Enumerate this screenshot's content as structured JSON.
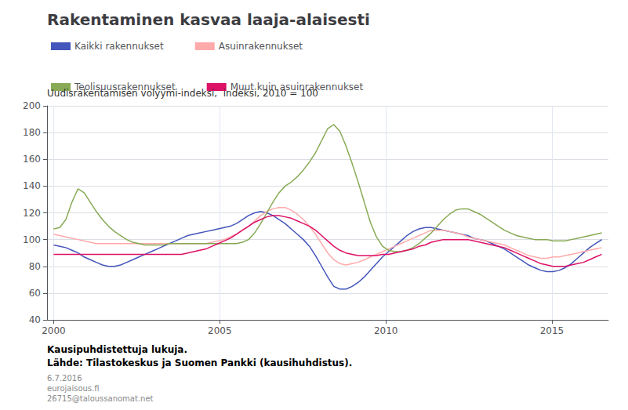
{
  "chart_data": {
    "type": "line",
    "title": "Rakentaminen kasvaa laaja-alaisesti",
    "subtitle": "Uudisrakentamisen volyymi-indeksi,  indeksi, 2010 = 100",
    "annotations": [
      "Kausipuhdistettuja lukuja.",
      "Lähde: Tilastokeskus ja Suomen Pankki (kausihuhdistus).",
      "6.7.2016",
      "eurojaisous.fi",
      "26715@taloussanomat.net"
    ],
    "x": [
      2000,
      2000.1833,
      2000.3667,
      2000.55,
      2000.7333,
      2000.9167,
      2001.1,
      2001.2833,
      2001.4667,
      2001.65,
      2001.8333,
      2002.0167,
      2002.2,
      2002.3833,
      2002.5667,
      2002.75,
      2002.9333,
      2003.1167,
      2003.3,
      2003.4833,
      2003.6667,
      2003.85,
      2004.0333,
      2004.2167,
      2004.4,
      2004.5833,
      2004.7667,
      2004.95,
      2005.1333,
      2005.3167,
      2005.5,
      2005.6833,
      2005.8667,
      2006.05,
      2006.2333,
      2006.4167,
      2006.6,
      2006.7833,
      2006.9667,
      2007.15,
      2007.3333,
      2007.5167,
      2007.7,
      2007.8833,
      2008.0667,
      2008.25,
      2008.4333,
      2008.6167,
      2008.8,
      2008.9833,
      2009.1667,
      2009.35,
      2009.5333,
      2009.7167,
      2009.9,
      2010.0833,
      2010.2667,
      2010.45,
      2010.6333,
      2010.8167,
      2011,
      2011.1833,
      2011.3667,
      2011.55,
      2011.7333,
      2011.9167,
      2012.1,
      2012.2833,
      2012.4667,
      2012.65,
      2012.8333,
      2013.0167,
      2013.2,
      2013.3833,
      2013.5667,
      2013.75,
      2013.9333,
      2014.1167,
      2014.3,
      2014.4833,
      2014.6667,
      2014.85,
      2015.0333,
      2015.2167,
      2015.4,
      2015.5833,
      2015.7667,
      2015.95,
      2016.1333,
      2016.3167,
      2016.5
    ],
    "series": [
      {
        "name": "Kaikki rakennukset",
        "color": "#4455bb",
        "values": [
          96,
          95,
          94,
          92,
          90,
          87,
          85,
          83,
          81,
          80,
          80,
          81,
          83,
          85,
          87,
          89,
          91,
          93,
          95,
          97,
          99,
          101,
          103,
          104,
          105,
          106,
          107,
          108,
          109,
          110,
          112,
          115,
          118,
          120,
          121,
          120,
          118,
          115,
          112,
          108,
          104,
          100,
          95,
          88,
          80,
          72,
          65,
          63,
          63,
          65,
          68,
          72,
          77,
          82,
          87,
          91,
          95,
          99,
          103,
          106,
          108,
          109,
          109,
          108,
          107,
          106,
          105,
          104,
          103,
          101,
          100,
          99,
          97,
          95,
          93,
          90,
          87,
          84,
          81,
          79,
          77,
          76,
          76,
          77,
          79,
          82,
          86,
          90,
          94,
          97,
          100
        ]
      },
      {
        "name": "Asuinrakennukset",
        "color": "#ffaaaa",
        "values": [
          104,
          103,
          102,
          101,
          100,
          99,
          98,
          97,
          97,
          97,
          97,
          97,
          97,
          97,
          97,
          97,
          97,
          97,
          97,
          97,
          97,
          97,
          97,
          97,
          97,
          97,
          98,
          99,
          100,
          102,
          104,
          107,
          110,
          114,
          118,
          121,
          123,
          124,
          124,
          122,
          119,
          115,
          110,
          104,
          97,
          90,
          85,
          82,
          81,
          82,
          83,
          85,
          87,
          89,
          91,
          93,
          95,
          97,
          99,
          101,
          103,
          105,
          107,
          107,
          107,
          106,
          105,
          104,
          102,
          101,
          100,
          99,
          98,
          97,
          96,
          94,
          92,
          90,
          88,
          87,
          86,
          86,
          87,
          87,
          88,
          89,
          90,
          91,
          92,
          93,
          94
        ]
      },
      {
        "name": "Teolisuusrakennukset",
        "color": "#88aa55",
        "values": [
          108,
          109,
          115,
          128,
          138,
          135,
          128,
          121,
          115,
          110,
          106,
          103,
          100,
          98,
          97,
          96,
          96,
          96,
          96,
          97,
          97,
          97,
          97,
          97,
          97,
          97,
          97,
          97,
          97,
          97,
          97,
          98,
          100,
          105,
          112,
          120,
          128,
          135,
          140,
          143,
          147,
          152,
          158,
          165,
          174,
          183,
          186,
          181,
          170,
          157,
          143,
          128,
          113,
          102,
          95,
          92,
          91,
          91,
          92,
          94,
          97,
          101,
          105,
          110,
          115,
          119,
          122,
          123,
          123,
          121,
          119,
          116,
          113,
          110,
          107,
          105,
          103,
          102,
          101,
          100,
          100,
          100,
          99,
          99,
          99,
          100,
          101,
          102,
          103,
          104,
          105
        ]
      },
      {
        "name": "Muut kuin asuinrakennukset",
        "color": "#dd1166",
        "values": [
          89,
          89,
          89,
          89,
          89,
          89,
          89,
          89,
          89,
          89,
          89,
          89,
          89,
          89,
          89,
          89,
          89,
          89,
          89,
          89,
          89,
          89,
          90,
          91,
          92,
          93,
          95,
          97,
          99,
          101,
          104,
          107,
          110,
          113,
          115,
          117,
          118,
          118,
          117,
          116,
          114,
          112,
          110,
          107,
          103,
          99,
          95,
          92,
          90,
          89,
          88,
          88,
          88,
          88,
          89,
          89,
          90,
          91,
          92,
          93,
          95,
          96,
          98,
          99,
          100,
          100,
          100,
          100,
          100,
          99,
          98,
          97,
          96,
          95,
          94,
          92,
          90,
          88,
          86,
          84,
          82,
          81,
          80,
          80,
          80,
          81,
          82,
          83,
          85,
          87,
          89
        ]
      }
    ],
    "xlim": [
      1999.8,
      2016.7
    ],
    "xticks": [
      2000,
      2005,
      2010,
      2015
    ],
    "ylim": [
      40,
      200
    ],
    "yticks": [
      40,
      60,
      80,
      100,
      120,
      140,
      160,
      180,
      200
    ],
    "grid": true,
    "legend": "top"
  }
}
